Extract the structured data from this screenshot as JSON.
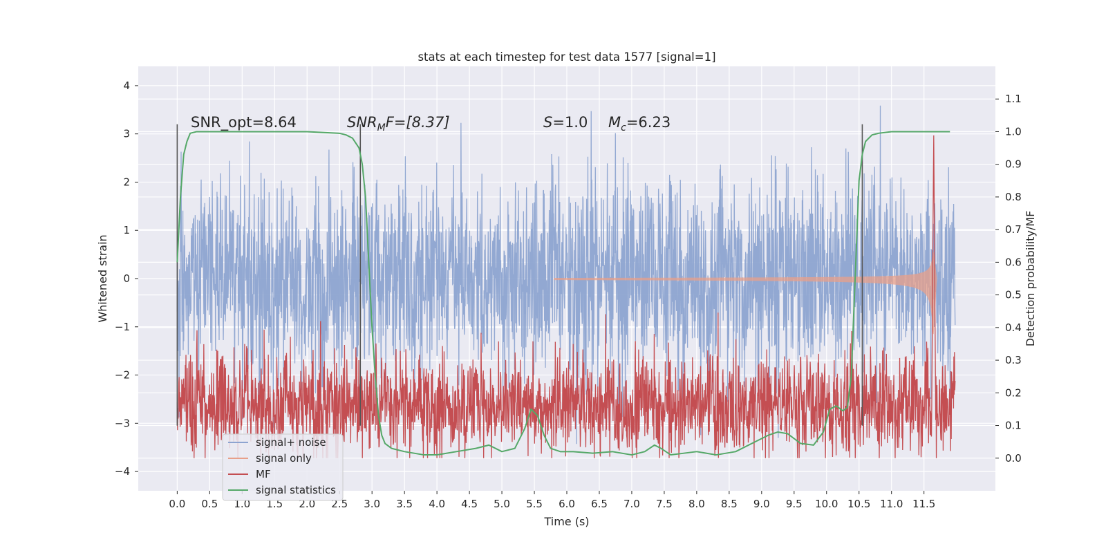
{
  "chart_data": {
    "type": "line",
    "title": "stats at each timestep for test data 1577 [signal=1]",
    "xlabel": "Time (s)",
    "ylabel": "Whitened strain",
    "ylabel_right": "Detection probability/MF",
    "xlim": [
      -0.6,
      12.6
    ],
    "ylim": [
      -4.4,
      4.4
    ],
    "ylim_right": [
      -0.1,
      1.2
    ],
    "x_ticks": [
      "0.0",
      "0.5",
      "1.0",
      "1.5",
      "2.0",
      "2.5",
      "3.0",
      "3.5",
      "4.0",
      "4.5",
      "5.0",
      "5.5",
      "6.0",
      "6.5",
      "7.0",
      "7.5",
      "8.0",
      "8.5",
      "9.0",
      "9.5",
      "10.0",
      "10.5",
      "11.0",
      "11.5"
    ],
    "y_ticks": [
      "4",
      "3",
      "2",
      "1",
      "0",
      "−1",
      "−2",
      "−3",
      "−4"
    ],
    "y_ticks_right": [
      "1.1",
      "1.0",
      "0.9",
      "0.8",
      "0.7",
      "0.6",
      "0.5",
      "0.4",
      "0.3",
      "0.2",
      "0.1",
      "0.0"
    ],
    "grid": true,
    "legend_position": "lower-left",
    "annotations": {
      "snr_opt": "SNR_opt=8.64",
      "snr_mf_sym": "SNR",
      "snr_mf_sub": "M",
      "snr_mf_rest": "F=[8.37]",
      "s_sym": "S",
      "s_rest": "=1.0",
      "mc_sym": "M",
      "mc_sub": "c",
      "mc_rest": "=6.23"
    },
    "vlines": [
      0.0,
      2.82,
      10.55
    ],
    "series": [
      {
        "name": "signal+ noise",
        "color": "#8da4d0",
        "kind": "noise",
        "x_range": [
          0.0,
          11.98
        ],
        "sigma": 1.0,
        "ymax": 4.09,
        "ymin": -3.91
      },
      {
        "name": "signal only",
        "color": "#e8a08a",
        "kind": "chirp",
        "t_merge": 11.65,
        "peak_amplitude": 0.45
      },
      {
        "name": "MF",
        "color": "#c44e52",
        "kind": "mf",
        "baseline": 0.16,
        "peak": 1.0,
        "t_peak": 11.65
      },
      {
        "name": "signal statistics",
        "color": "#55a868",
        "axis": "right",
        "x": [
          0.0,
          0.05,
          0.1,
          0.15,
          0.2,
          0.3,
          0.5,
          1.0,
          1.5,
          2.0,
          2.5,
          2.6,
          2.7,
          2.8,
          2.85,
          2.9,
          2.95,
          3.0,
          3.05,
          3.1,
          3.15,
          3.2,
          3.3,
          3.5,
          3.8,
          4.0,
          4.3,
          4.6,
          4.8,
          5.0,
          5.2,
          5.35,
          5.45,
          5.55,
          5.65,
          5.75,
          5.9,
          6.1,
          6.4,
          6.7,
          7.0,
          7.2,
          7.35,
          7.45,
          7.6,
          7.8,
          8.0,
          8.3,
          8.6,
          8.9,
          9.1,
          9.25,
          9.4,
          9.6,
          9.8,
          9.95,
          10.05,
          10.15,
          10.25,
          10.32,
          10.38,
          10.45,
          10.5,
          10.55,
          10.6,
          10.7,
          10.8,
          11.0,
          11.5,
          11.9
        ],
        "y": [
          0.6,
          0.8,
          0.93,
          0.97,
          0.995,
          1.0,
          1.0,
          1.0,
          1.0,
          1.0,
          0.995,
          0.99,
          0.98,
          0.95,
          0.9,
          0.8,
          0.6,
          0.4,
          0.25,
          0.13,
          0.07,
          0.045,
          0.03,
          0.02,
          0.01,
          0.01,
          0.02,
          0.03,
          0.04,
          0.02,
          0.03,
          0.09,
          0.15,
          0.13,
          0.07,
          0.03,
          0.02,
          0.02,
          0.015,
          0.02,
          0.01,
          0.02,
          0.04,
          0.03,
          0.01,
          0.015,
          0.02,
          0.01,
          0.02,
          0.05,
          0.07,
          0.08,
          0.075,
          0.045,
          0.04,
          0.08,
          0.15,
          0.16,
          0.145,
          0.155,
          0.25,
          0.6,
          0.85,
          0.93,
          0.97,
          0.99,
          0.995,
          1.0,
          1.0,
          1.0
        ]
      }
    ],
    "legend": [
      "signal+ noise",
      "signal only",
      "MF",
      "signal statistics"
    ]
  }
}
